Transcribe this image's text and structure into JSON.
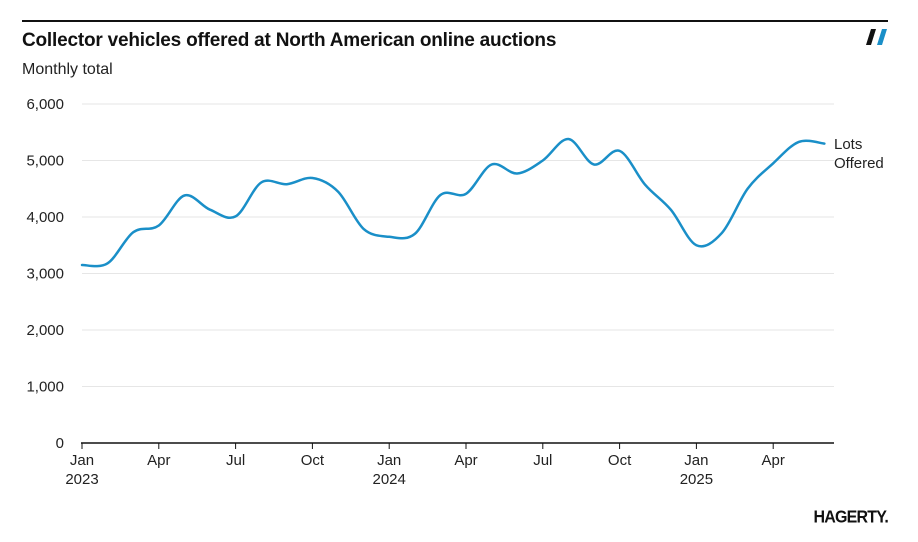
{
  "header": {
    "title": "Collector vehicles offered at North American online auctions",
    "subtitle": "Monthly total"
  },
  "brand": {
    "mark_icon": "hagerty-slash-mark-icon",
    "logo_text": "HAGERTY."
  },
  "colors": {
    "line": "#1a8fc8",
    "mark_blue": "#1a8fc8",
    "mark_dark": "#111111",
    "grid": "#e6e6e6",
    "axis": "#111111",
    "text": "#222222"
  },
  "chart_data": {
    "type": "line",
    "title": "Collector vehicles offered at North American online auctions",
    "subtitle": "Monthly total",
    "xlabel": "",
    "ylabel": "",
    "ylim": [
      0,
      6000
    ],
    "yticks": [
      0,
      1000,
      2000,
      3000,
      4000,
      5000,
      6000
    ],
    "ytick_labels": [
      "0",
      "1,000",
      "2,000",
      "3,000",
      "4,000",
      "5,000",
      "6,000"
    ],
    "grid": true,
    "legend": "right end of line",
    "x": [
      "2023-01",
      "2023-02",
      "2023-03",
      "2023-04",
      "2023-05",
      "2023-06",
      "2023-07",
      "2023-08",
      "2023-09",
      "2023-10",
      "2023-11",
      "2023-12",
      "2024-01",
      "2024-02",
      "2024-03",
      "2024-04",
      "2024-05",
      "2024-06",
      "2024-07",
      "2024-08",
      "2024-09",
      "2024-10",
      "2024-11",
      "2024-12",
      "2025-01",
      "2025-02",
      "2025-03",
      "2025-04",
      "2025-05",
      "2025-06"
    ],
    "xticks": [
      {
        "index": 0,
        "month": "Jan",
        "year": "2023"
      },
      {
        "index": 3,
        "month": "Apr",
        "year": ""
      },
      {
        "index": 6,
        "month": "Jul",
        "year": ""
      },
      {
        "index": 9,
        "month": "Oct",
        "year": ""
      },
      {
        "index": 12,
        "month": "Jan",
        "year": "2024"
      },
      {
        "index": 15,
        "month": "Apr",
        "year": ""
      },
      {
        "index": 18,
        "month": "Jul",
        "year": ""
      },
      {
        "index": 21,
        "month": "Oct",
        "year": ""
      },
      {
        "index": 24,
        "month": "Jan",
        "year": "2025"
      },
      {
        "index": 27,
        "month": "Apr",
        "year": ""
      }
    ],
    "series": [
      {
        "name": "Lots Offered",
        "label_lines": [
          "Lots",
          "Offered"
        ],
        "values": [
          3150,
          3180,
          3730,
          3850,
          4380,
          4130,
          4010,
          4610,
          4580,
          4690,
          4450,
          3790,
          3650,
          3700,
          4390,
          4410,
          4930,
          4770,
          5000,
          5380,
          4930,
          5170,
          4570,
          4130,
          3500,
          3720,
          4500,
          4950,
          5330,
          5300
        ]
      }
    ]
  }
}
